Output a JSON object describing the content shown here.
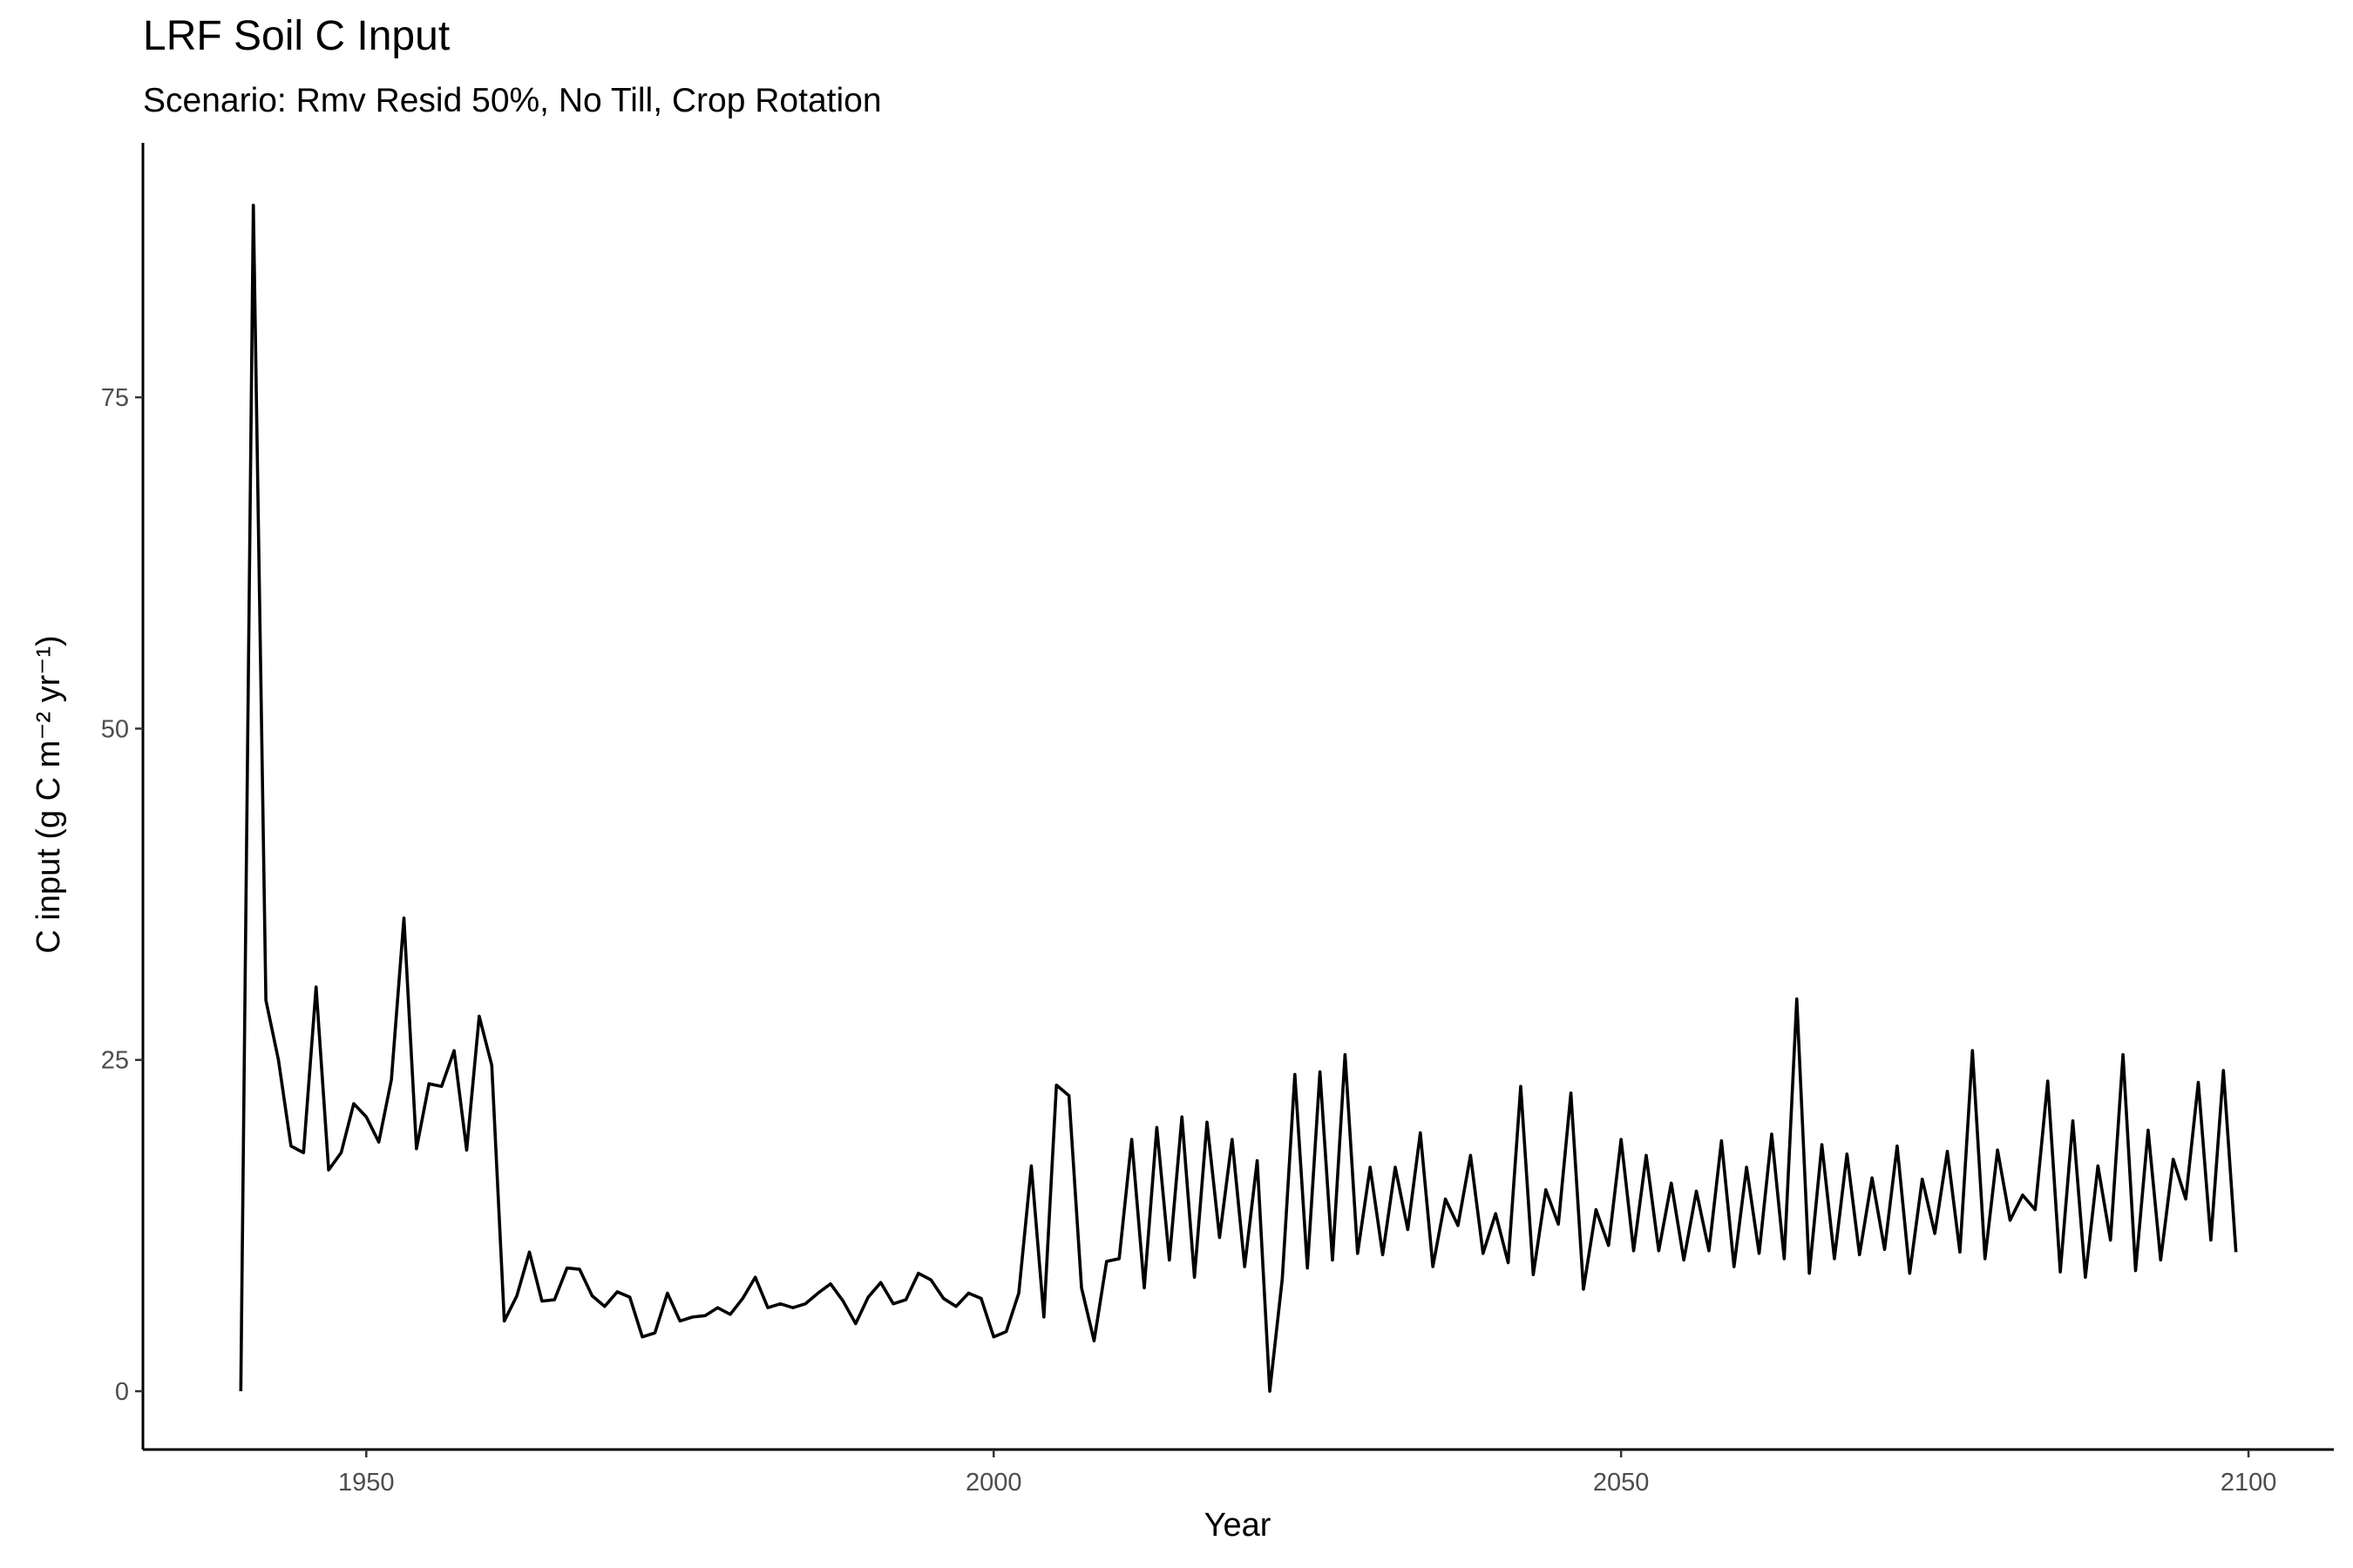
{
  "chart_data": {
    "type": "line",
    "title": "LRF Soil C Input",
    "subtitle": "Scenario: Rmv Resid 50%, No Till, Crop Rotation",
    "xlabel": "Year",
    "ylabel": "C input (g C m⁻² yr⁻¹)",
    "color": "#000000",
    "x": [
      1940,
      1941,
      1942,
      1943,
      1944,
      1945,
      1946,
      1947,
      1948,
      1949,
      1950,
      1951,
      1952,
      1953,
      1954,
      1955,
      1956,
      1957,
      1958,
      1959,
      1960,
      1961,
      1962,
      1963,
      1964,
      1965,
      1966,
      1967,
      1968,
      1969,
      1970,
      1971,
      1972,
      1973,
      1974,
      1975,
      1976,
      1977,
      1978,
      1979,
      1980,
      1981,
      1982,
      1983,
      1984,
      1985,
      1986,
      1987,
      1988,
      1989,
      1990,
      1991,
      1992,
      1993,
      1994,
      1995,
      1996,
      1997,
      1998,
      1999,
      2000,
      2001,
      2002,
      2003,
      2004,
      2005,
      2006,
      2007,
      2008,
      2009,
      2010,
      2011,
      2012,
      2013,
      2014,
      2015,
      2016,
      2017,
      2018,
      2019,
      2020,
      2021,
      2022,
      2023,
      2024,
      2025,
      2026,
      2027,
      2028,
      2029,
      2030,
      2031,
      2032,
      2033,
      2034,
      2035,
      2036,
      2037,
      2038,
      2039,
      2040,
      2041,
      2042,
      2043,
      2044,
      2045,
      2046,
      2047,
      2048,
      2049,
      2050,
      2051,
      2052,
      2053,
      2054,
      2055,
      2056,
      2057,
      2058,
      2059,
      2060,
      2061,
      2062,
      2063,
      2064,
      2065,
      2066,
      2067,
      2068,
      2069,
      2070,
      2071,
      2072,
      2073,
      2074,
      2075,
      2076,
      2077,
      2078,
      2079,
      2080,
      2081,
      2082,
      2083,
      2084,
      2085,
      2086,
      2087,
      2088,
      2089,
      2090,
      2091,
      2092,
      2093,
      2094,
      2095,
      2096,
      2097,
      2098,
      2099
    ],
    "values": [
      0,
      89.5,
      29.5,
      25,
      18.5,
      18,
      30.5,
      16.7,
      18,
      21.7,
      20.7,
      18.8,
      23.5,
      35.7,
      18.3,
      23.2,
      23,
      25.7,
      18.2,
      28.3,
      24.6,
      5.3,
      7.2,
      10.5,
      6.8,
      6.9,
      9.3,
      9.2,
      7.2,
      6.4,
      7.5,
      7.1,
      4.1,
      4.4,
      7.4,
      5.3,
      5.6,
      5.7,
      6.3,
      5.8,
      7,
      8.6,
      6.3,
      6.6,
      6.3,
      6.6,
      7.4,
      8.1,
      6.8,
      5.1,
      7.1,
      8.2,
      6.6,
      6.9,
      8.9,
      8.4,
      7,
      6.4,
      7.4,
      7,
      4.1,
      4.5,
      7.4,
      17,
      5.6,
      23.1,
      22.3,
      7.8,
      3.8,
      9.8,
      10,
      19,
      7.8,
      19.9,
      9.9,
      20.7,
      8.6,
      20.3,
      11.6,
      19,
      9.4,
      17.4,
      0,
      8.5,
      23.9,
      9.3,
      24.1,
      9.9,
      25.4,
      10.4,
      16.9,
      10.3,
      16.9,
      12.2,
      19.5,
      9.4,
      14.5,
      12.5,
      17.8,
      10.4,
      13.4,
      9.7,
      23,
      8.8,
      15.2,
      12.6,
      22.5,
      7.7,
      13.7,
      11,
      19,
      10.6,
      17.8,
      10.6,
      15.7,
      9.9,
      15.1,
      10.6,
      18.9,
      9.4,
      16.9,
      10.4,
      19.4,
      10,
      29.6,
      8.9,
      18.6,
      10,
      17.9,
      10.3,
      16.1,
      10.7,
      18.5,
      8.9,
      16,
      11.9,
      18.1,
      10.5,
      25.7,
      10,
      18.2,
      12.9,
      14.8,
      13.7,
      23.4,
      9,
      20.4,
      8.6,
      17,
      11.4,
      25.4,
      9.1,
      19.7,
      9.9,
      17.5,
      14.5,
      23.3,
      11.4,
      24.2,
      10.5
    ],
    "xlim": [
      1932.2,
      2106.8
    ],
    "xticks": [
      1950,
      2000,
      2050,
      2100
    ],
    "ylim": [
      -4.4,
      94.2
    ],
    "yticks": [
      0,
      25,
      50,
      75
    ]
  }
}
